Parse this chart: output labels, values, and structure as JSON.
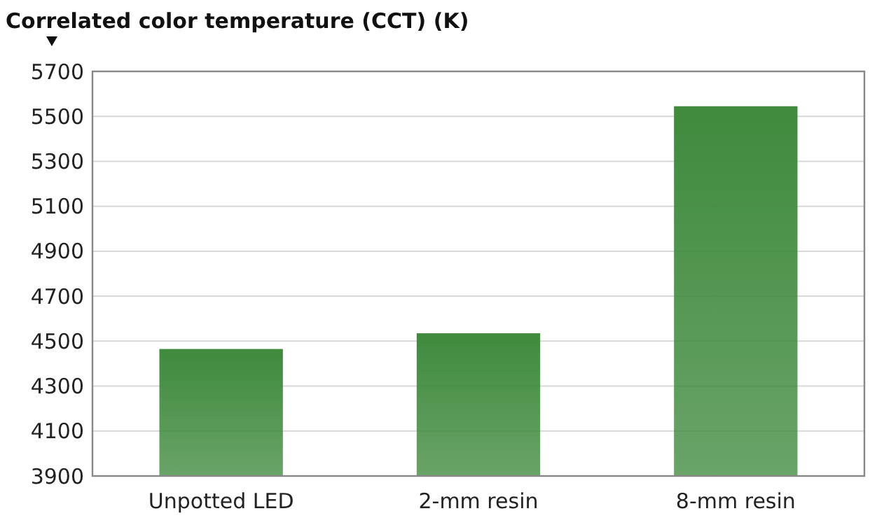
{
  "chart_data": {
    "type": "bar",
    "title": "Correlated color temperature (CCT) (K)",
    "categories": [
      "Unpotted LED",
      "2-mm resin",
      "8-mm resin"
    ],
    "values": [
      4465,
      4535,
      5545
    ],
    "color": "#3f8a3d",
    "ylim": [
      3900,
      5700
    ],
    "yticks": [
      3900,
      4100,
      4300,
      4500,
      4700,
      4900,
      5100,
      5300,
      5500,
      5700
    ],
    "grid": "y"
  }
}
